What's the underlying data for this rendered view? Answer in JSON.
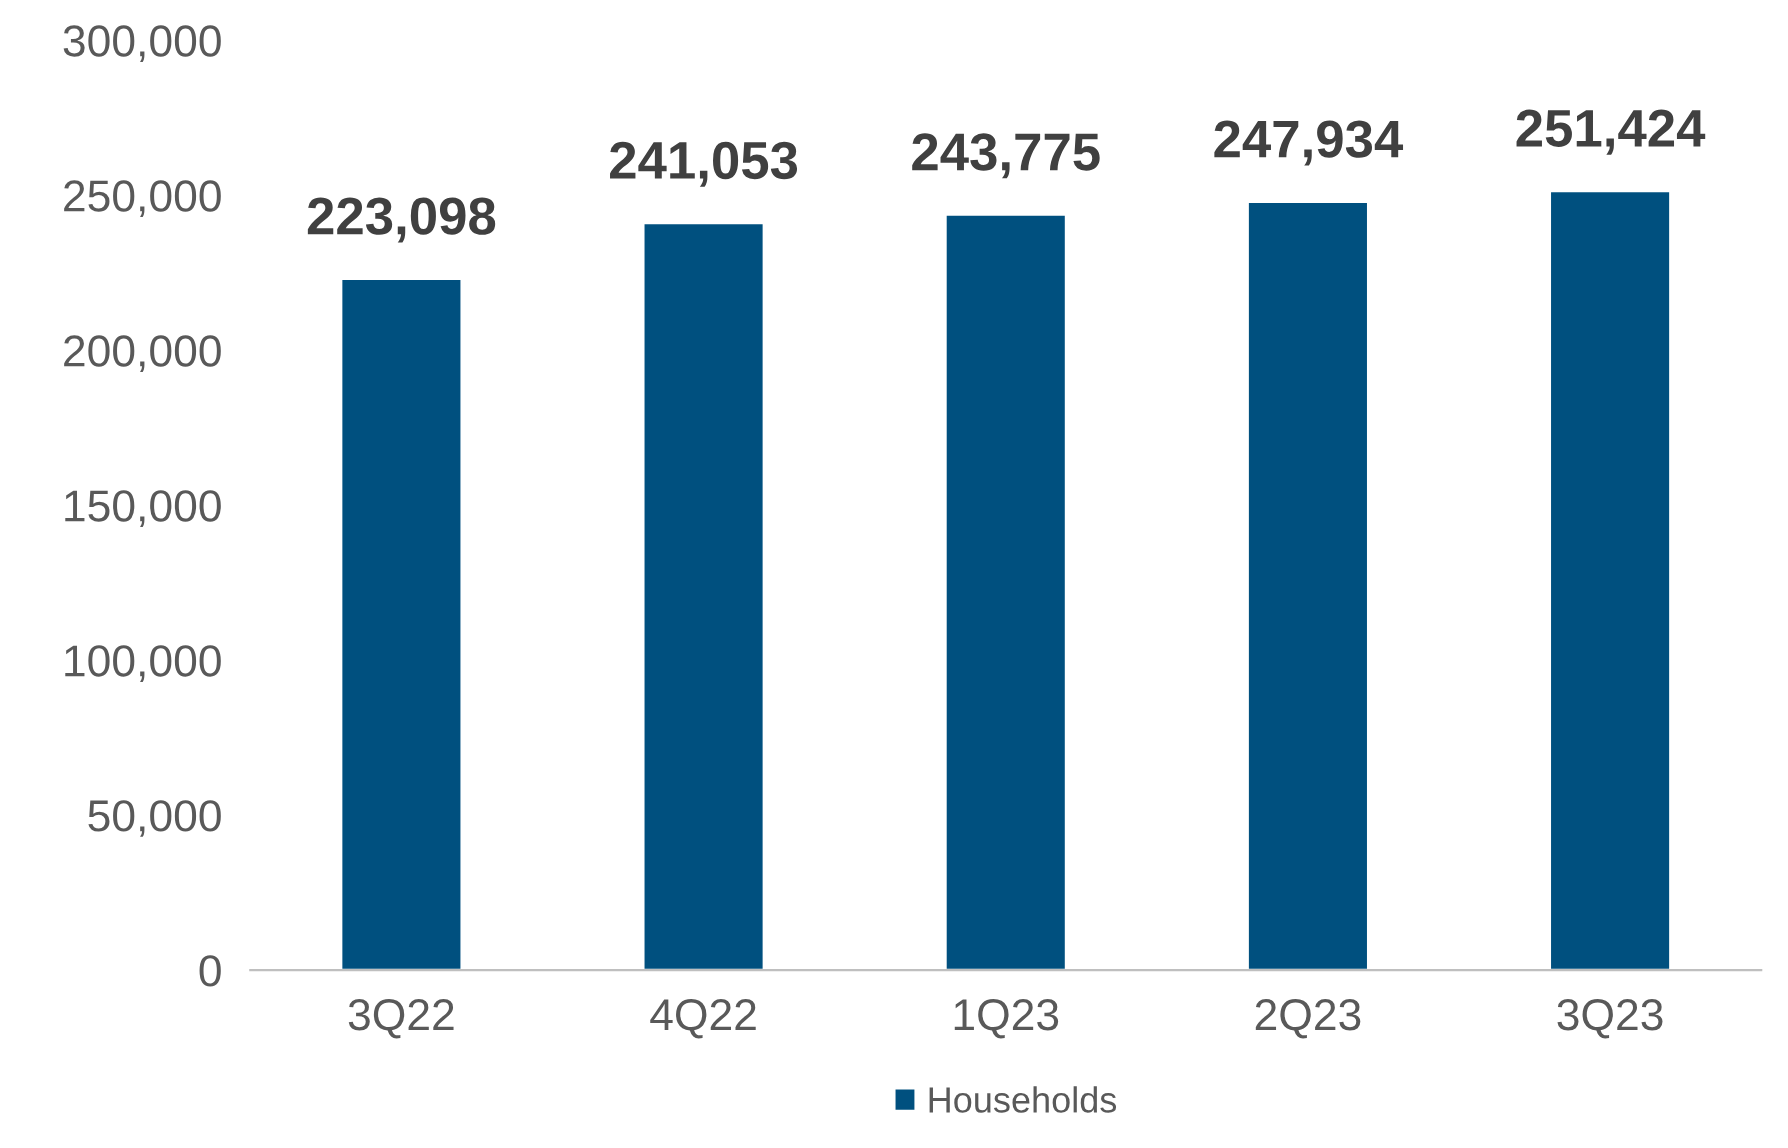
{
  "chart_data": {
    "type": "bar",
    "categories": [
      "3Q22",
      "4Q22",
      "1Q23",
      "2Q23",
      "3Q23"
    ],
    "series": [
      {
        "name": "Households",
        "color": "#00507f",
        "values": [
          223098,
          241053,
          243775,
          247934,
          251424
        ],
        "value_labels": [
          "223,098",
          "241,053",
          "243,775",
          "247,934",
          "251,424"
        ]
      }
    ],
    "ylim": [
      0,
      300000
    ],
    "yticks": [
      {
        "value": 0,
        "label": "0"
      },
      {
        "value": 50000,
        "label": "50,000"
      },
      {
        "value": 100000,
        "label": "100,000"
      },
      {
        "value": 150000,
        "label": "150,000"
      },
      {
        "value": 200000,
        "label": "200,000"
      },
      {
        "value": 250000,
        "label": "250,000"
      },
      {
        "value": 300000,
        "label": "300,000"
      }
    ],
    "grid": false,
    "legend": "bottom"
  }
}
